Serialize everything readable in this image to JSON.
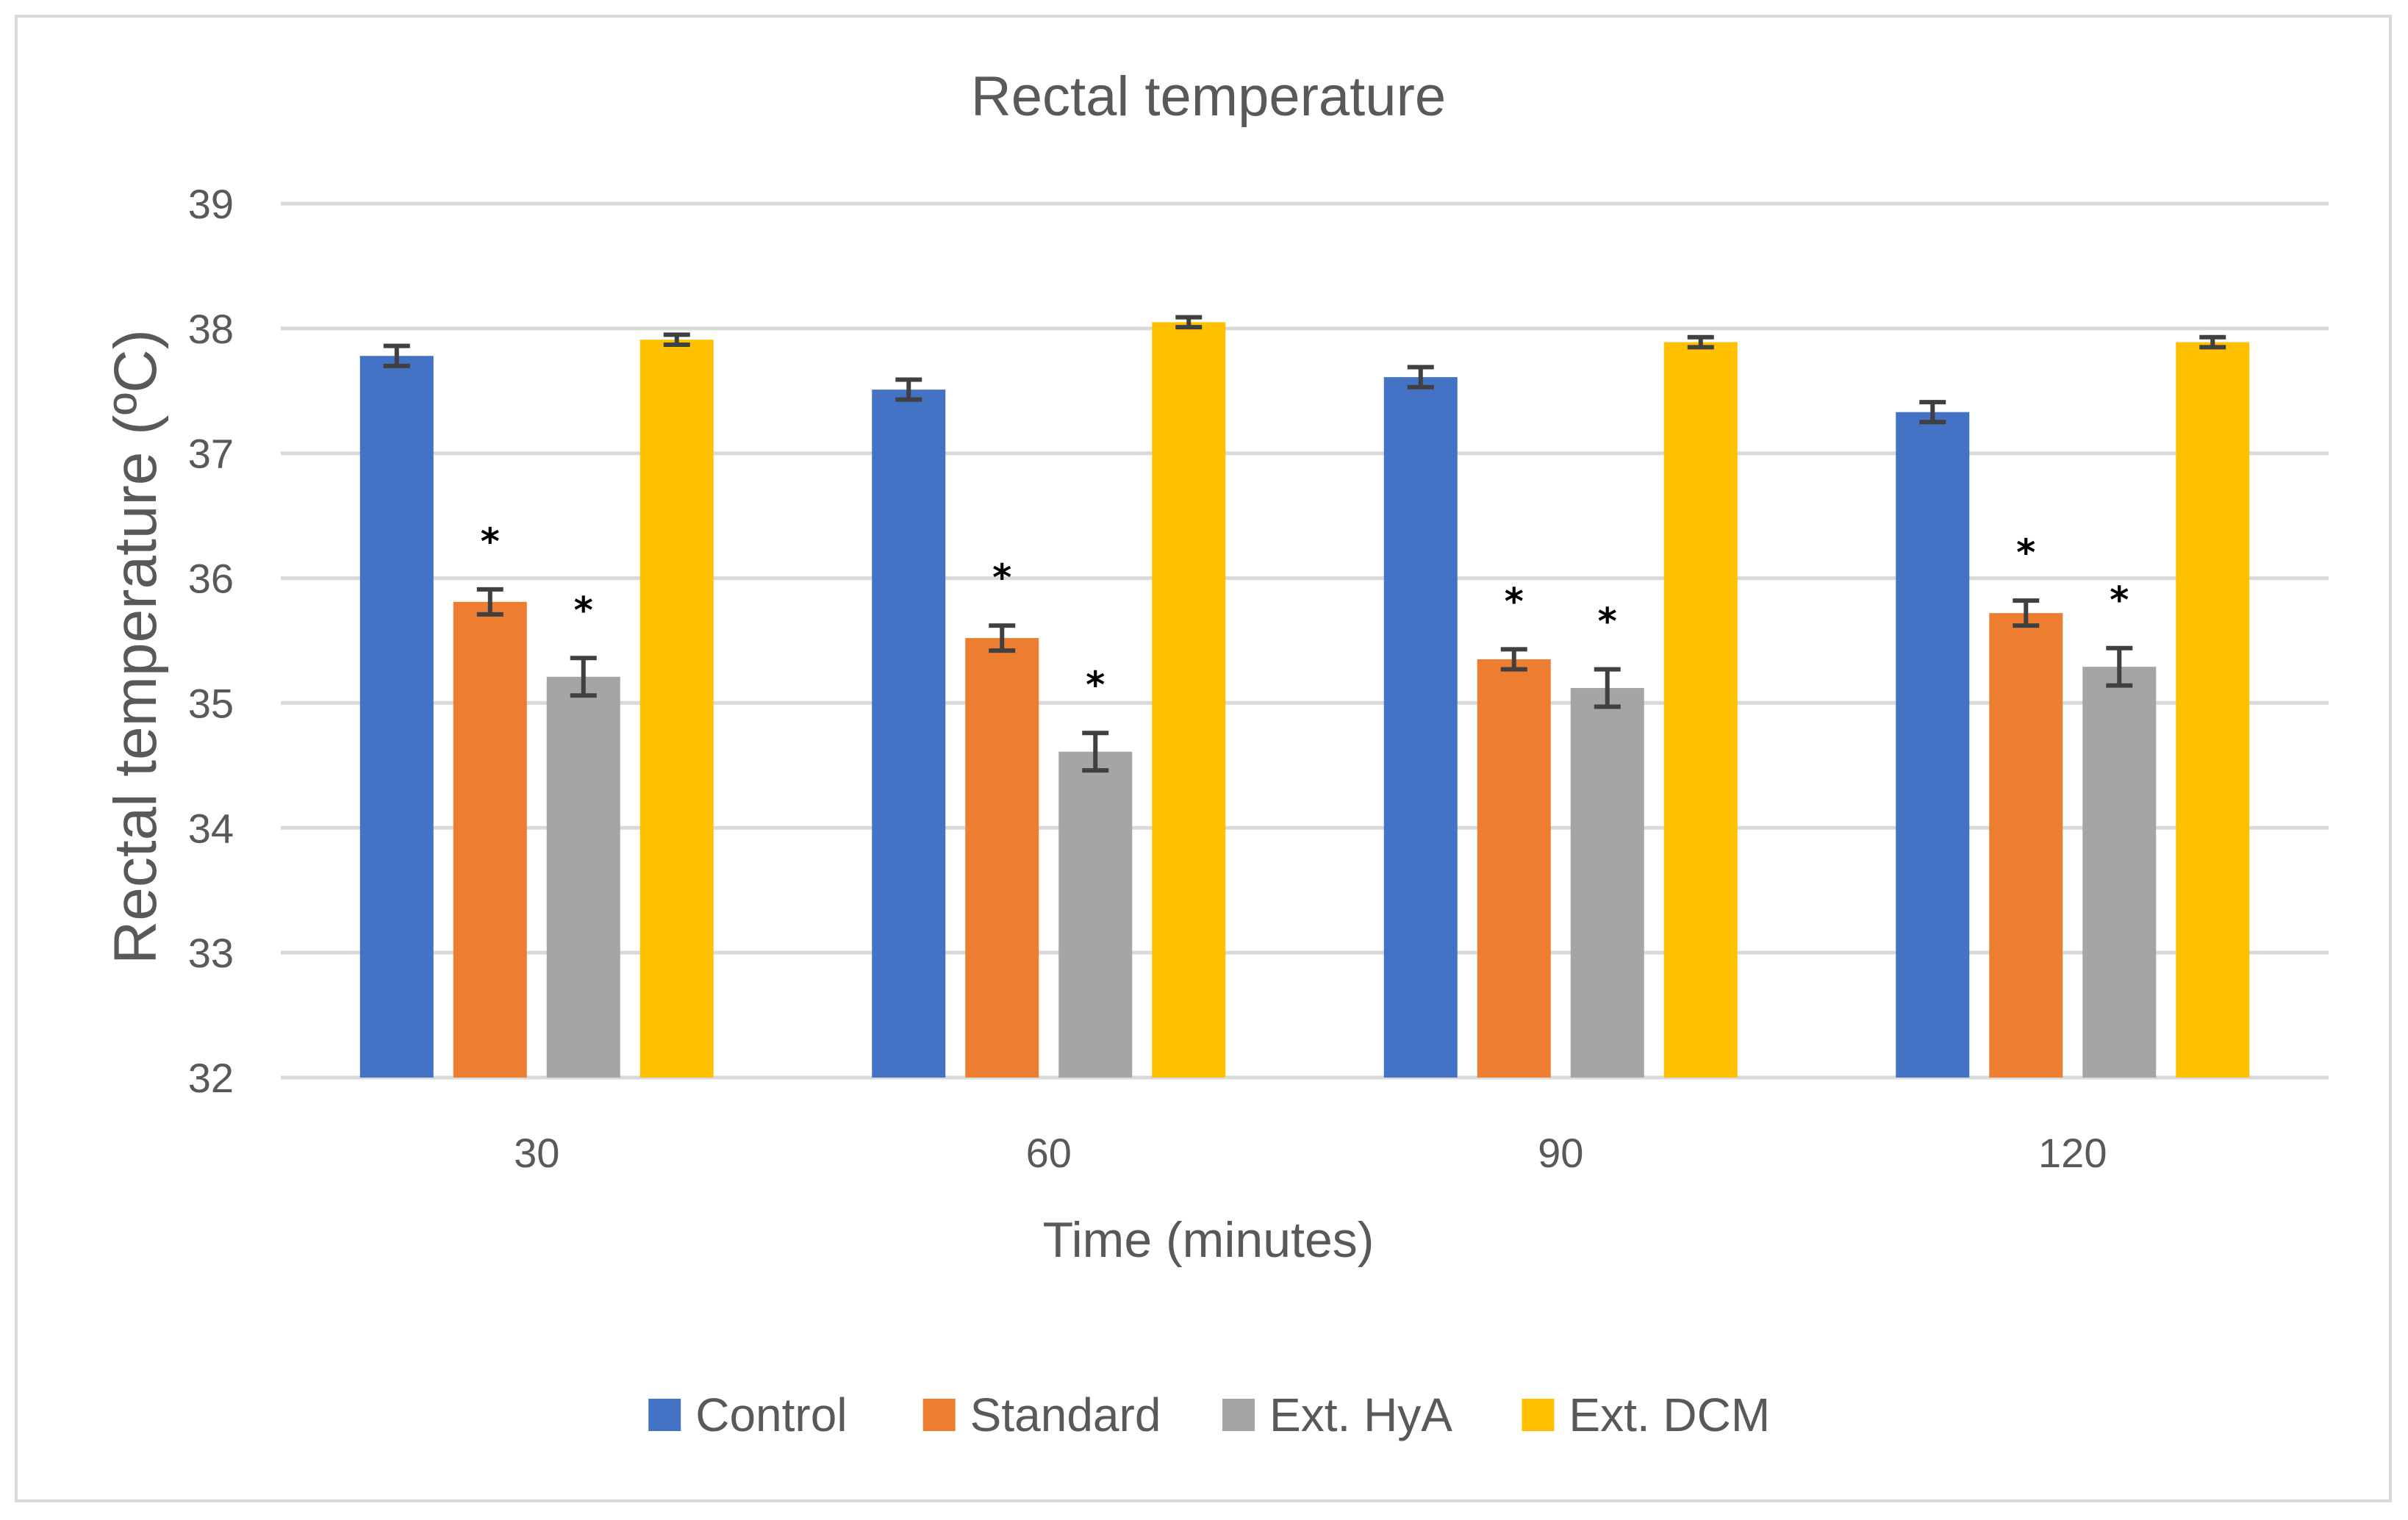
{
  "chart_data": {
    "type": "bar",
    "title": "Rectal temperature",
    "xlabel": "Time (minutes)",
    "ylabel": "Rectal temperature (ºC)",
    "categories": [
      "30",
      "60",
      "90",
      "120"
    ],
    "ylim": [
      32,
      39
    ],
    "yticks": [
      "32",
      "33",
      "34",
      "35",
      "36",
      "37",
      "38",
      "39"
    ],
    "grid": true,
    "legend_position": "bottom",
    "series": [
      {
        "name": "Control",
        "color": "#4472C4",
        "values": [
          37.78,
          37.51,
          37.61,
          37.33
        ],
        "errors": [
          0.08,
          0.08,
          0.08,
          0.08
        ],
        "annotations": [
          "",
          "",
          "",
          ""
        ]
      },
      {
        "name": "Standard",
        "color": "#ED7D31",
        "values": [
          35.81,
          35.52,
          35.35,
          35.72
        ],
        "errors": [
          0.1,
          0.1,
          0.08,
          0.1
        ],
        "annotations": [
          "*",
          "*",
          "*",
          "*"
        ]
      },
      {
        "name": "Ext. HyA",
        "color": "#A5A5A5",
        "values": [
          35.21,
          34.61,
          35.12,
          35.29
        ],
        "errors": [
          0.15,
          0.15,
          0.15,
          0.15
        ],
        "annotations": [
          "*",
          "*",
          "*",
          "*"
        ]
      },
      {
        "name": "Ext. DCM",
        "color": "#FFC000",
        "values": [
          37.91,
          38.05,
          37.89,
          37.89
        ],
        "errors": [
          0.04,
          0.04,
          0.04,
          0.04
        ],
        "annotations": [
          "",
          "",
          "",
          ""
        ]
      }
    ]
  },
  "colors": {
    "grid": "#D9D9D9",
    "text": "#595959",
    "error_bar": "#404040",
    "frame": "#D9D9D9"
  }
}
